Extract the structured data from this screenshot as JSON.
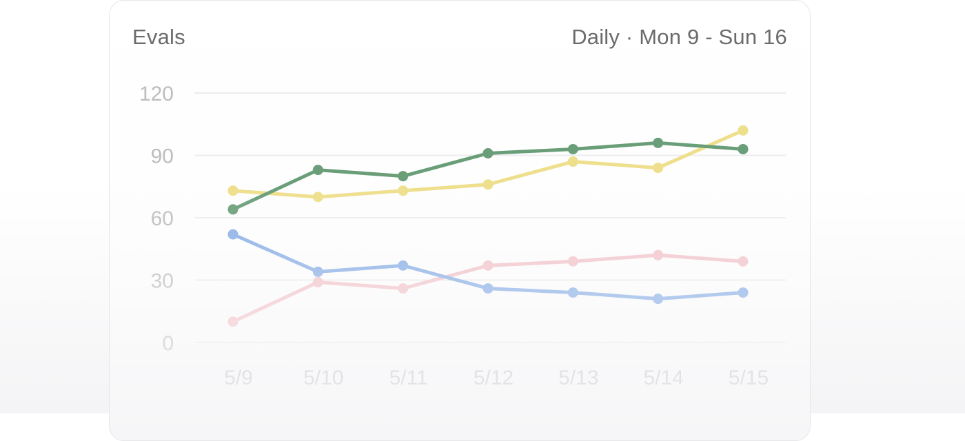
{
  "header": {
    "title": "Evals",
    "range": "Daily · Mon 9 - Sun 16"
  },
  "colors": {
    "green": "#6a9e79",
    "yellow": "#eedf8c",
    "blue": "#89aee5",
    "pink": "#f1c3c9",
    "grid": "#ececee",
    "tick": "#bdbdbd"
  },
  "chart_data": {
    "type": "line",
    "title": "Evals",
    "subtitle": "Daily · Mon 9 - Sun 16",
    "xlabel": "",
    "ylabel": "",
    "categories": [
      "5/9",
      "5/10",
      "5/11",
      "5/12",
      "5/13",
      "5/14",
      "5/15"
    ],
    "yticks": [
      "0",
      "30",
      "60",
      "90",
      "120"
    ],
    "ylim": [
      0,
      120
    ],
    "grid": true,
    "legend": "none",
    "series": [
      {
        "color": "#6a9e79",
        "values": [
          64,
          83,
          80,
          91,
          93,
          96,
          93
        ]
      },
      {
        "color": "#eedf8c",
        "values": [
          73,
          70,
          73,
          76,
          87,
          84,
          102
        ]
      },
      {
        "color": "#89aee5",
        "values": [
          52,
          34,
          37,
          26,
          24,
          21,
          24
        ]
      },
      {
        "color": "#f1c3c9",
        "values": [
          10,
          29,
          26,
          37,
          39,
          42,
          39
        ]
      }
    ]
  }
}
